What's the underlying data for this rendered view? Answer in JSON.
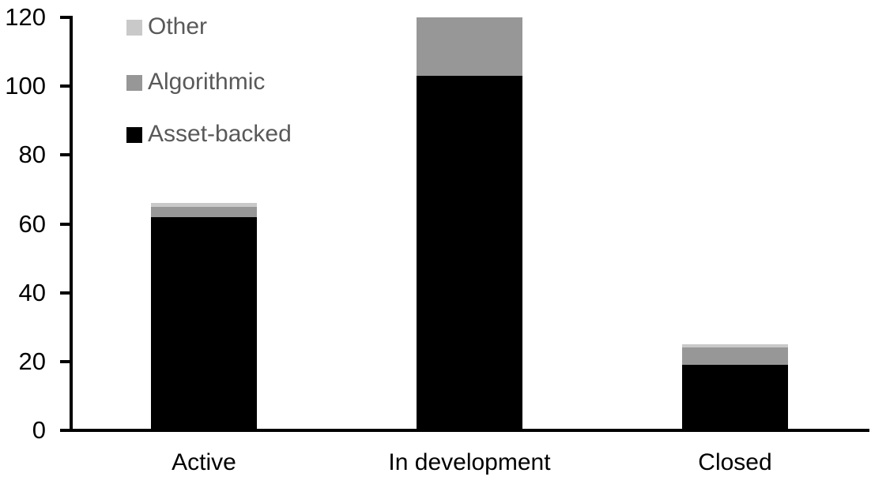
{
  "chart_data": {
    "type": "bar",
    "stacked": true,
    "title": "",
    "xlabel": "",
    "ylabel": "",
    "categories": [
      "Active",
      "In development",
      "Closed"
    ],
    "series": [
      {
        "name": "Asset-backed",
        "color": "#000000",
        "values": [
          62,
          103,
          19
        ]
      },
      {
        "name": "Algorithmic",
        "color": "#979797",
        "values": [
          3,
          17,
          5
        ]
      },
      {
        "name": "Other",
        "color": "#C9C9C9",
        "values": [
          1,
          0,
          1
        ]
      }
    ],
    "totals": [
      66,
      120,
      25
    ],
    "ylim": [
      0,
      120
    ],
    "yticks": [
      0,
      20,
      40,
      60,
      80,
      100,
      120
    ],
    "grid": false,
    "legend": {
      "position": "top-left-inside",
      "order_top_to_bottom": [
        "Other",
        "Algorithmic",
        "Asset-backed"
      ],
      "text_color": "#595959"
    },
    "axis_color": "#000000"
  }
}
